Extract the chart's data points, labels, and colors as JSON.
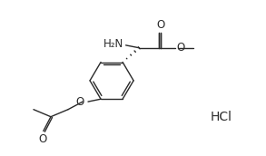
{
  "bg_color": "#ffffff",
  "figsize": [
    2.93,
    1.72
  ],
  "dpi": 100,
  "lw": 1.0,
  "bond_color": "#2a2a2a",
  "text_color": "#2a2a2a",
  "hcl_text": "HCl",
  "h2n_text": "H₂N",
  "o_text": "O",
  "xlim": [
    0,
    10
  ],
  "ylim": [
    0,
    6
  ]
}
